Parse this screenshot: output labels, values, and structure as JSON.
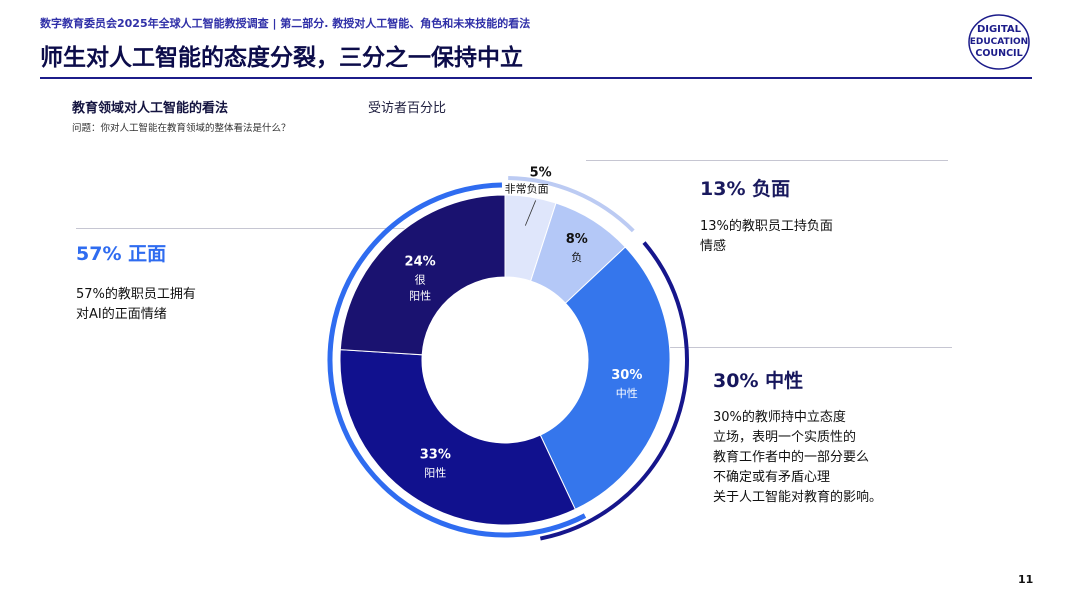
{
  "header": {
    "breadcrumb": "数字教育委员会2025年全球人工智能教授调查 | 第二部分. 教授对人工智能、角色和未来技能的看法",
    "title": "师生对人工智能的态度分裂，三分之一保持中立",
    "logo_lines": [
      "DIGITAL",
      "EDUCATION",
      "COUNCIL"
    ]
  },
  "chart_data": {
    "type": "pie",
    "title": "教育领域对人工智能的看法",
    "subtitle": "受访者百分比",
    "question": "问题：你对人工智能在教育领域的整体看法是什么？",
    "slices": [
      {
        "label": "非常负面",
        "value": 5,
        "value_label": "5%",
        "color": "#dfe6fb"
      },
      {
        "label": "负",
        "value": 8,
        "value_label": "8%",
        "color": "#b4c8f7"
      },
      {
        "label": "中性",
        "value": 30,
        "value_label": "30%",
        "color": "#3576ec"
      },
      {
        "label": "阳性",
        "value": 33,
        "value_label": "33%",
        "color": "#11118e"
      },
      {
        "label": "很\n阳性",
        "value": 24,
        "value_label": "24%",
        "color": "#1a1270"
      }
    ],
    "groups": [
      {
        "name": "13% 负面",
        "value": 13,
        "description": "13%的教职员工持负面\n情感",
        "color": "#bccbf3"
      },
      {
        "name": "30% 中性",
        "value": 30,
        "description": "30%的教师持中立态度\n立场，表明一个实质性的\n教育工作者中的一部分要么\n不确定或有矛盾心理\n关于人工智能对教育的影响。",
        "color": "#16168c"
      },
      {
        "name": "57% 正面",
        "value": 57,
        "description": "57%的教职员工拥有\n对AI的正面情绪",
        "color": "#2f6cf0"
      }
    ]
  },
  "page_number": "11"
}
